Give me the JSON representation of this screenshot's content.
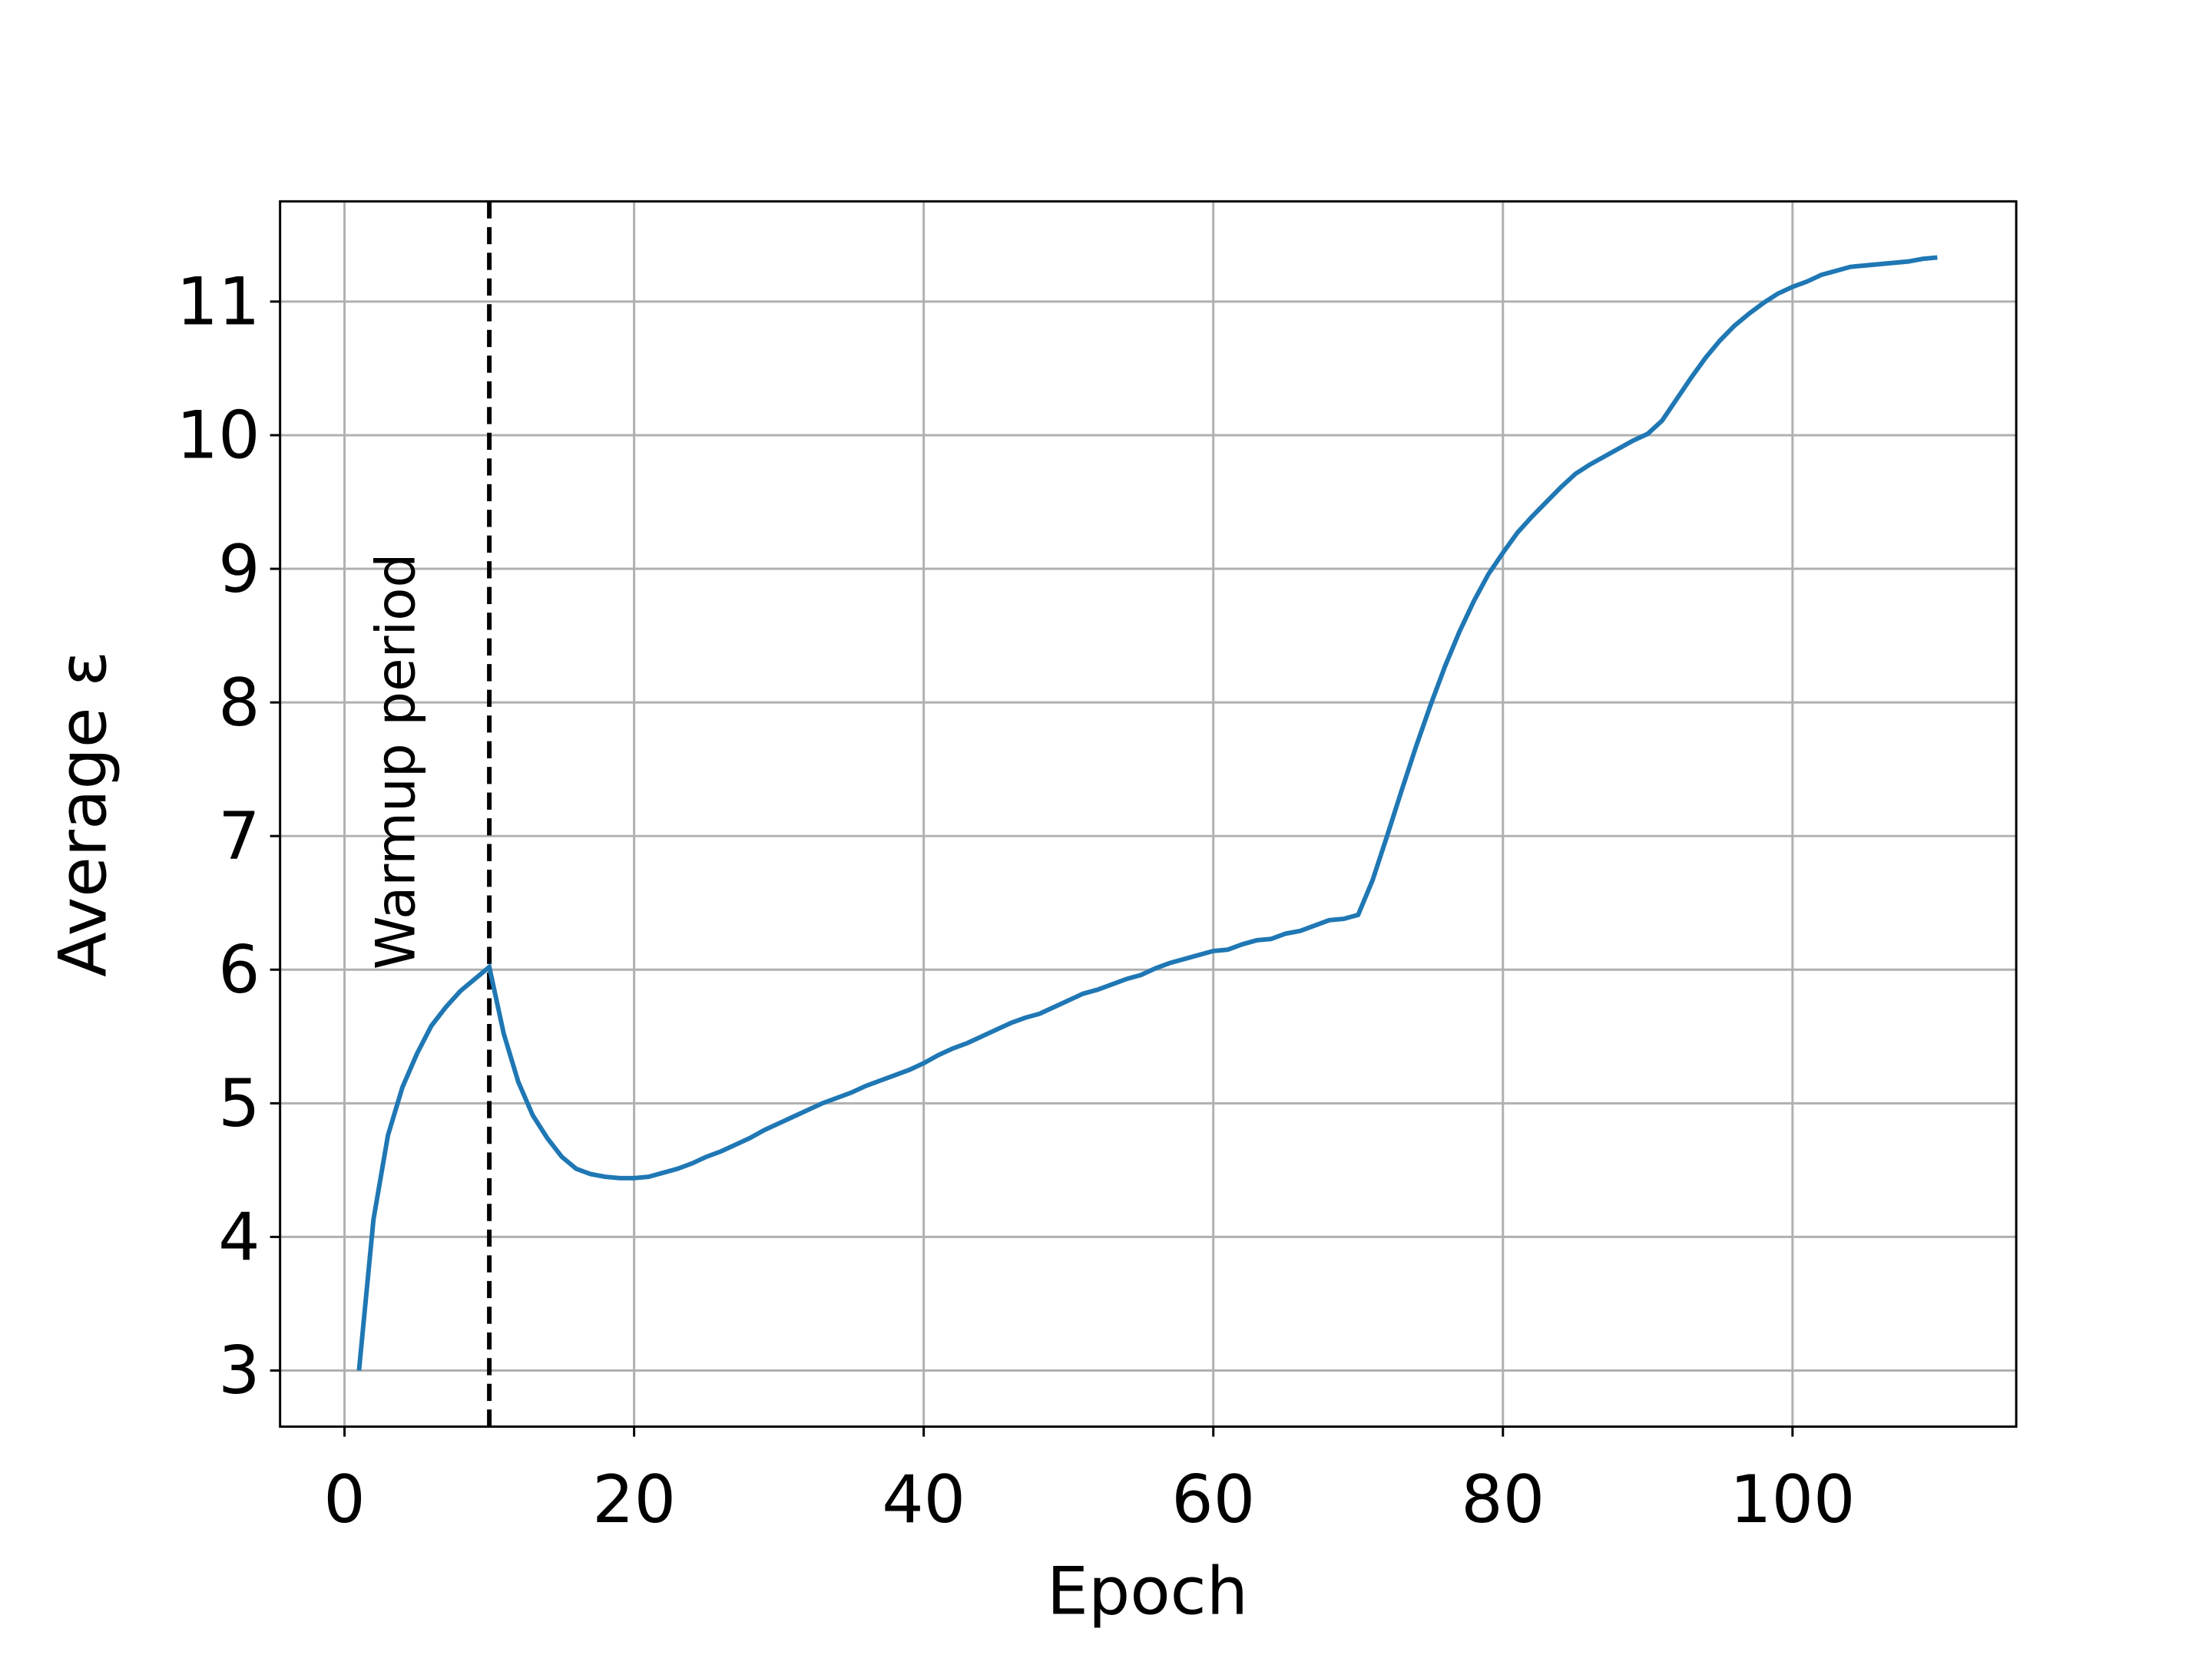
{
  "chart_data": {
    "type": "line",
    "xlabel": "Epoch",
    "ylabel": "Average ε",
    "annotation": "Warmup period",
    "vlines": [
      10
    ],
    "xlim": [
      -4.45,
      115.45
    ],
    "ylim": [
      2.58,
      11.75
    ],
    "xticks": [
      0,
      20,
      40,
      60,
      80,
      100
    ],
    "yticks": [
      3,
      4,
      5,
      6,
      7,
      8,
      9,
      10,
      11
    ],
    "grid": true,
    "x": [
      1,
      2,
      3,
      4,
      5,
      6,
      7,
      8,
      9,
      10,
      11,
      12,
      13,
      14,
      15,
      16,
      17,
      18,
      19,
      20,
      21,
      22,
      23,
      24,
      25,
      26,
      27,
      28,
      29,
      30,
      31,
      32,
      33,
      34,
      35,
      36,
      37,
      38,
      39,
      40,
      41,
      42,
      43,
      44,
      45,
      46,
      47,
      48,
      49,
      50,
      51,
      52,
      53,
      54,
      55,
      56,
      57,
      58,
      59,
      60,
      61,
      62,
      63,
      64,
      65,
      66,
      67,
      68,
      69,
      70,
      71,
      72,
      73,
      74,
      75,
      76,
      77,
      78,
      79,
      80,
      81,
      82,
      83,
      84,
      85,
      86,
      87,
      88,
      89,
      90,
      91,
      92,
      93,
      94,
      95,
      96,
      97,
      98,
      99,
      100,
      101,
      102,
      103,
      104,
      105,
      106,
      107,
      108,
      109,
      110
    ],
    "series": [
      {
        "color": "#1f77b4",
        "values": [
          3.0,
          4.13,
          4.76,
          5.12,
          5.37,
          5.58,
          5.72,
          5.84,
          5.93,
          6.02,
          5.52,
          5.16,
          4.91,
          4.74,
          4.6,
          4.51,
          4.47,
          4.45,
          4.44,
          4.44,
          4.45,
          4.48,
          4.51,
          4.55,
          4.6,
          4.64,
          4.69,
          4.74,
          4.8,
          4.85,
          4.9,
          4.95,
          5.0,
          5.04,
          5.08,
          5.13,
          5.17,
          5.21,
          5.25,
          5.3,
          5.36,
          5.41,
          5.45,
          5.5,
          5.55,
          5.6,
          5.64,
          5.67,
          5.72,
          5.77,
          5.82,
          5.85,
          5.89,
          5.93,
          5.96,
          6.01,
          6.05,
          6.08,
          6.11,
          6.14,
          6.15,
          6.19,
          6.22,
          6.23,
          6.27,
          6.29,
          6.33,
          6.37,
          6.38,
          6.41,
          6.67,
          7.0,
          7.34,
          7.67,
          7.98,
          8.27,
          8.53,
          8.76,
          8.96,
          9.12,
          9.27,
          9.39,
          9.5,
          9.61,
          9.71,
          9.78,
          9.84,
          9.9,
          9.96,
          10.01,
          10.11,
          10.27,
          10.43,
          10.58,
          10.71,
          10.82,
          10.91,
          10.99,
          11.06,
          11.11,
          11.15,
          11.2,
          11.23,
          11.26,
          11.27,
          11.28,
          11.29,
          11.3,
          11.32,
          11.33
        ]
      }
    ]
  }
}
